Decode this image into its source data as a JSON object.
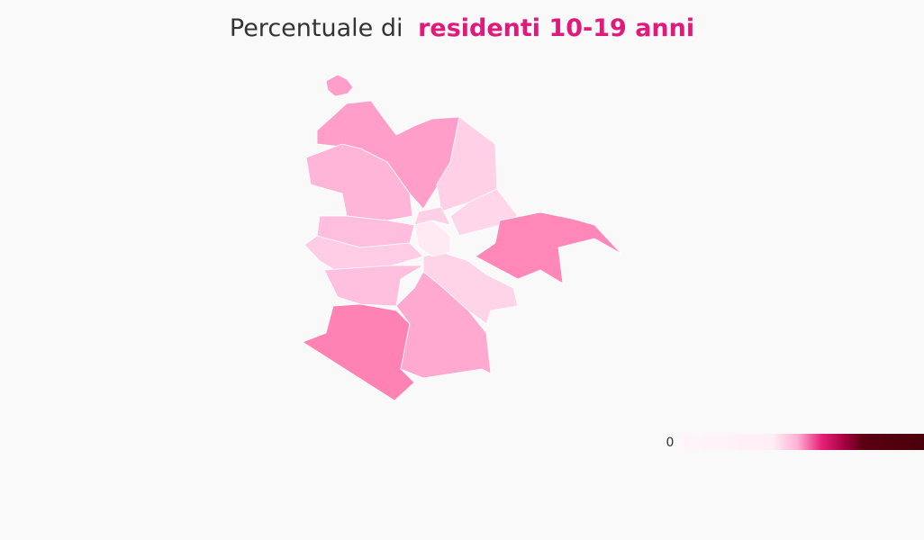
{
  "title": {
    "prefix": "Percentuale di",
    "highlight": "residenti 10-19 anni"
  },
  "legend": {
    "min_label": "0"
  }
}
